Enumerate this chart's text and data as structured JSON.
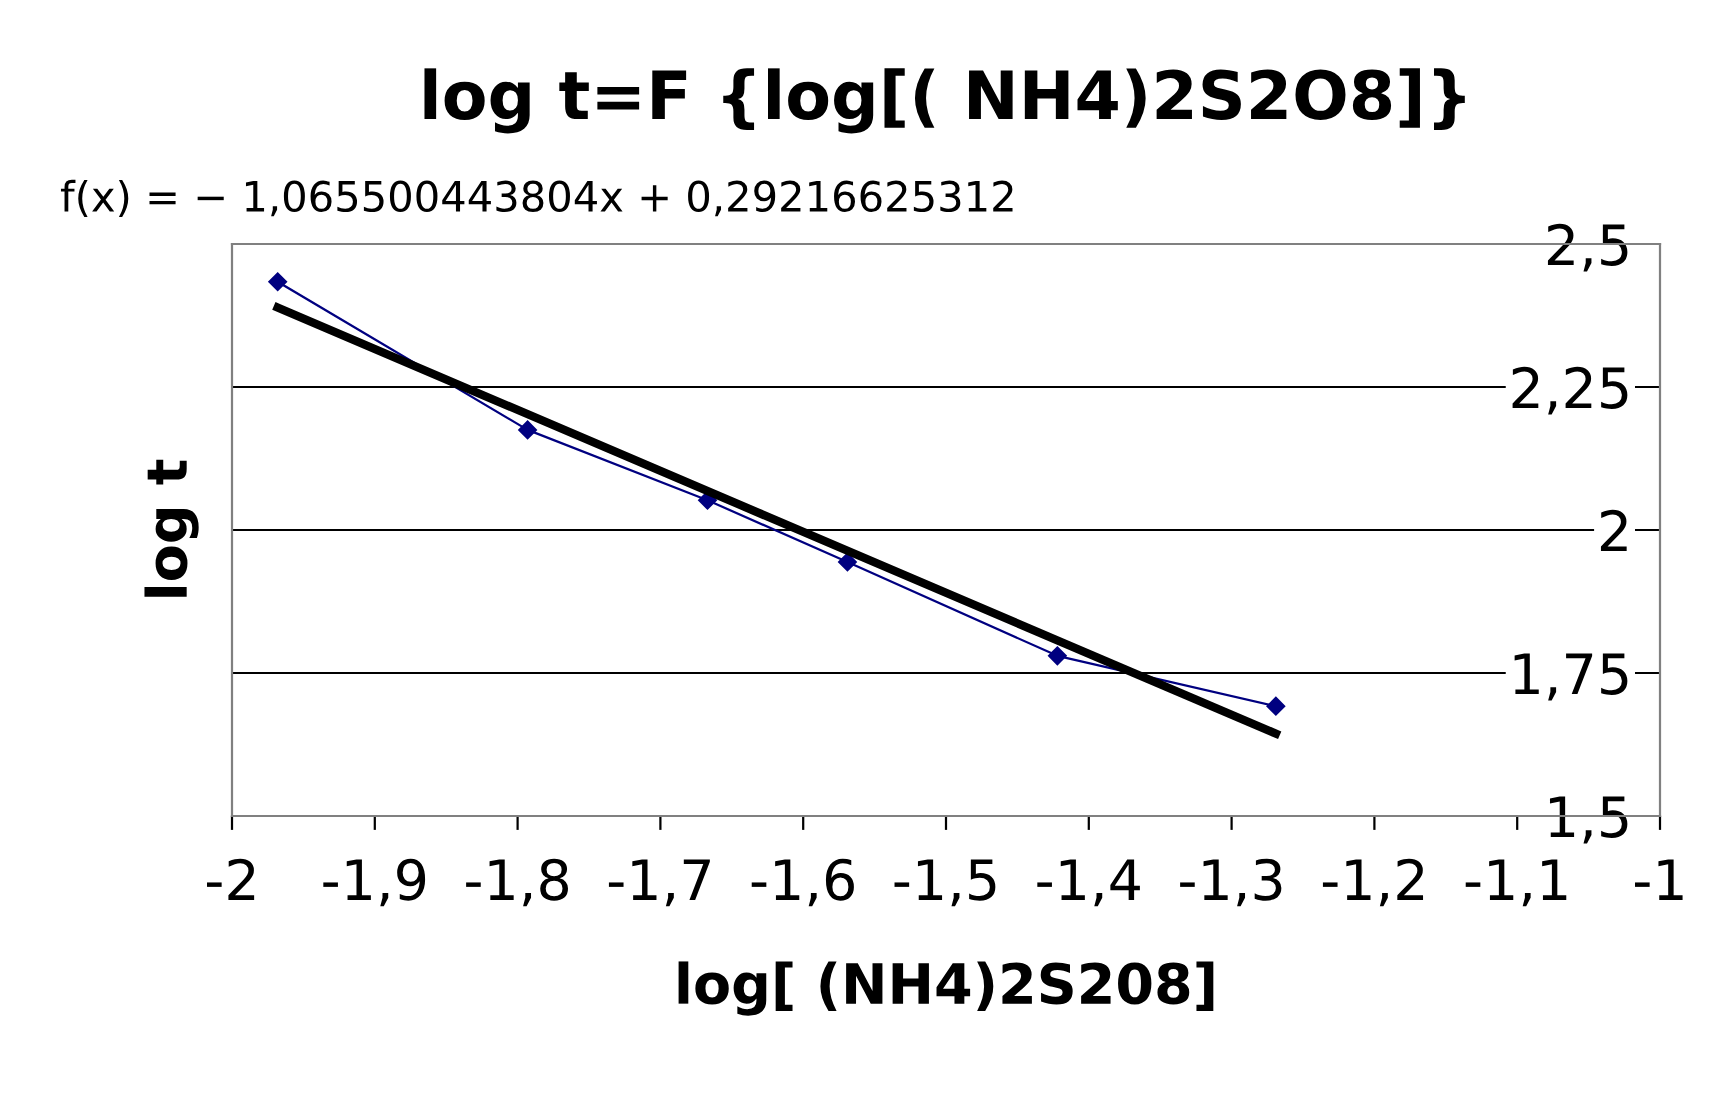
{
  "chart_data": {
    "type": "line",
    "title": "log t=F {log[( NH4)2S2O8]}",
    "xlabel": "log[ (NH4)2S208]",
    "ylabel": "log t",
    "xlim": [
      -2,
      -1
    ],
    "xticks": [
      {
        "value": -2,
        "label": "-2"
      },
      {
        "value": -1.9,
        "label": "-1,9"
      },
      {
        "value": -1.8,
        "label": "-1,8"
      },
      {
        "value": -1.7,
        "label": "-1,7"
      },
      {
        "value": -1.6,
        "label": "-1,6"
      },
      {
        "value": -1.5,
        "label": "-1,5"
      },
      {
        "value": -1.4,
        "label": "-1,4"
      },
      {
        "value": -1.3,
        "label": "-1,3"
      },
      {
        "value": -1.2,
        "label": "-1,2"
      },
      {
        "value": -1.1,
        "label": "-1,1"
      },
      {
        "value": -1,
        "label": "-1"
      }
    ],
    "ylim": [
      1.5,
      2.5
    ],
    "yticks": [
      {
        "value": 1.5,
        "label": "1,5"
      },
      {
        "value": 1.75,
        "label": "1,75"
      },
      {
        "value": 2,
        "label": "2"
      },
      {
        "value": 2.25,
        "label": "2,25"
      },
      {
        "value": 2.5,
        "label": "2,5"
      }
    ],
    "grid": "y",
    "legend": false,
    "series": [
      {
        "color": "#000080",
        "marker": "diamond",
        "x": [
          -1.968,
          -1.793,
          -1.667,
          -1.569,
          -1.422,
          -1.269
        ],
        "values": [
          2.434,
          2.175,
          2.052,
          1.944,
          1.78,
          1.692
        ]
      },
      {
        "type": "line",
        "color": "#000000",
        "marker": "none",
        "x": [
          -1.968,
          -1.269
        ],
        "values": [
          2.389,
          1.644
        ]
      }
    ],
    "annotations": [
      "f(x) = − 1,065500443804x + 0,29216625312"
    ]
  }
}
